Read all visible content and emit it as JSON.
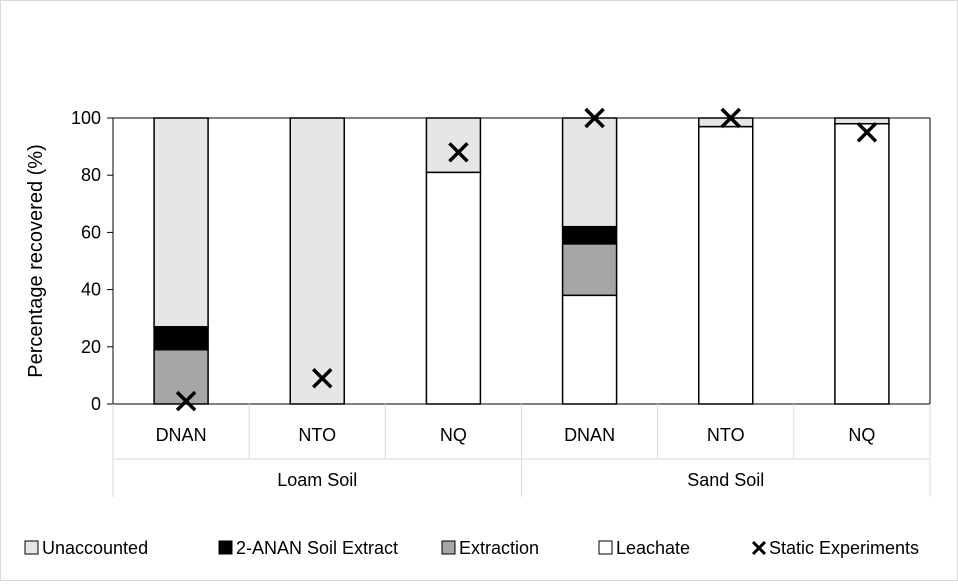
{
  "chart_data": {
    "type": "bar",
    "stacked": true,
    "ylabel": "Percentage recovered (%)",
    "ylim": [
      0,
      100
    ],
    "yticks": [
      0,
      20,
      40,
      60,
      80,
      100
    ],
    "grid": false,
    "legend_position": "bottom",
    "groups": [
      {
        "label": "Loam Soil",
        "categories": [
          "DNAN",
          "NTO",
          "NQ"
        ]
      },
      {
        "label": "Sand Soil",
        "categories": [
          "DNAN",
          "NTO",
          "NQ"
        ]
      }
    ],
    "categories": [
      "DNAN",
      "NTO",
      "NQ",
      "DNAN",
      "NTO",
      "NQ"
    ],
    "series": [
      {
        "name": "Leachate",
        "color": "#ffffff",
        "values": [
          0,
          0,
          81,
          38,
          97,
          98
        ]
      },
      {
        "name": "Extraction",
        "color": "#a6a6a6",
        "values": [
          19,
          0,
          0,
          18,
          0,
          0
        ]
      },
      {
        "name": "2-ANAN Soil Extract",
        "color": "#000000",
        "values": [
          8,
          0,
          0,
          6,
          0,
          0
        ]
      },
      {
        "name": "Unaccounted",
        "color": "#e6e6e6",
        "values": [
          73,
          100,
          19,
          38,
          3,
          2
        ]
      }
    ],
    "markers": {
      "name": "Static Experiments",
      "symbol": "x",
      "values": [
        1,
        9,
        88,
        100,
        100,
        95
      ]
    },
    "legend": [
      "Unaccounted",
      "2-ANAN Soil Extract",
      "Extraction",
      "Leachate",
      "Static Experiments"
    ]
  }
}
